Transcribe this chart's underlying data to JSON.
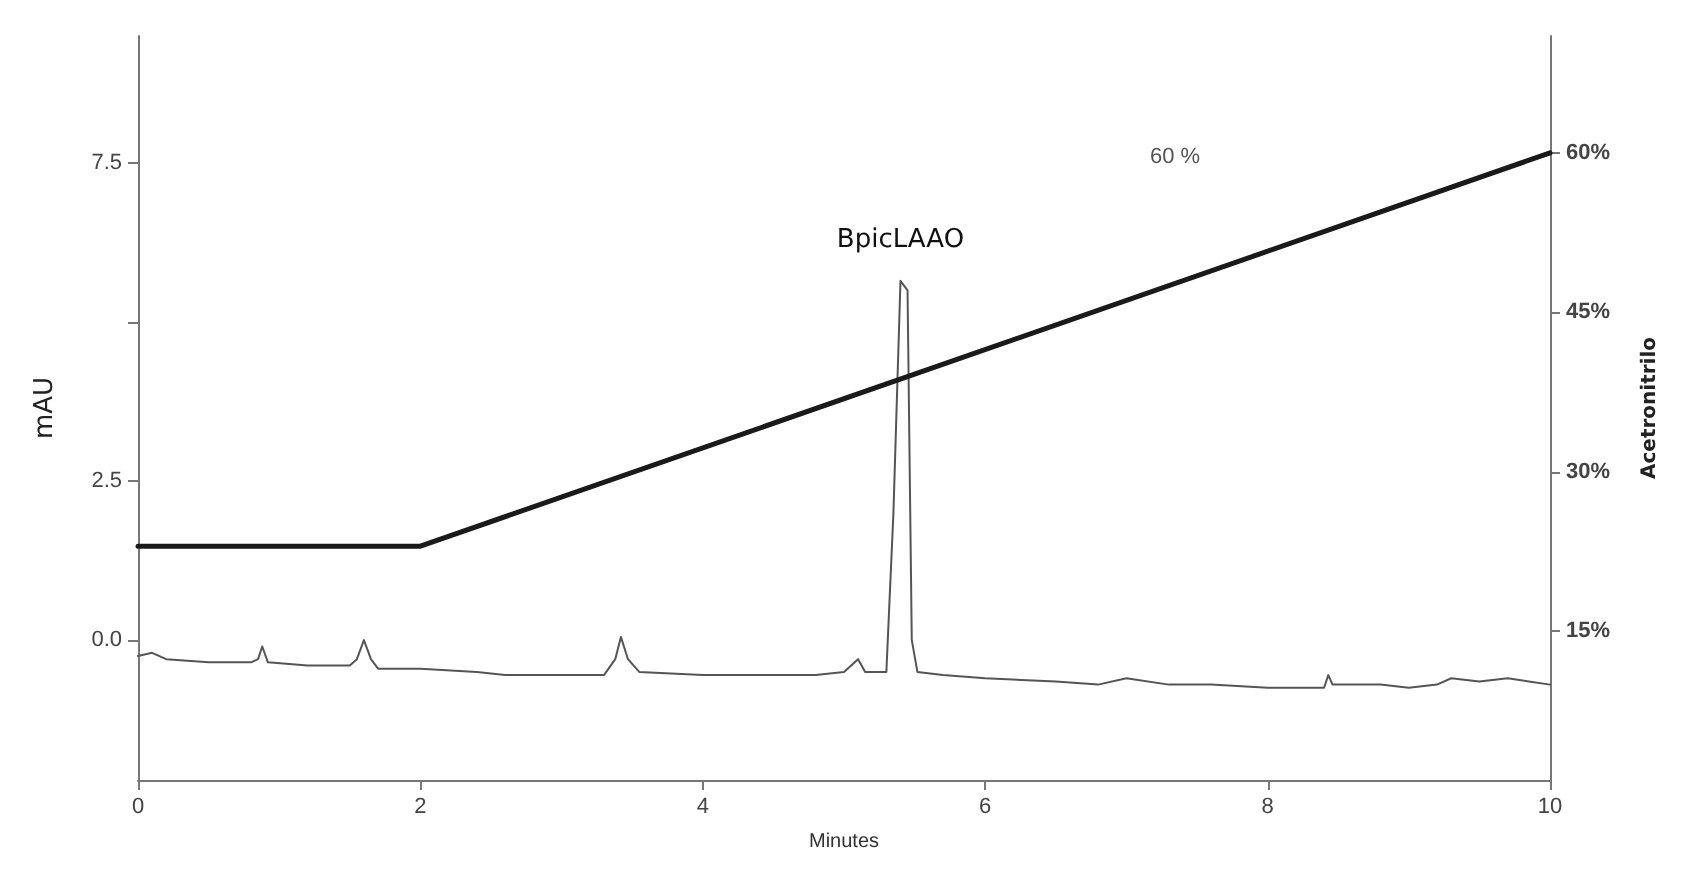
{
  "chart_data": {
    "type": "line",
    "xlabel": "Minutes",
    "ylabel": "mAU",
    "y2label": "Acetronitrilo",
    "xlim": [
      0,
      10
    ],
    "xticks": [
      0,
      2,
      4,
      6,
      8,
      10
    ],
    "ylim": [
      -2.2,
      9.5
    ],
    "yticks": [
      {
        "value": 0,
        "label": "0.0"
      },
      2.5,
      {
        "value": 5,
        "label": null
      },
      7.5
    ],
    "y2lim": [
      1,
      71
    ],
    "y2ticks": [
      {
        "value": 15,
        "label": "15%"
      },
      {
        "value": 30,
        "label": "30%"
      },
      {
        "value": 45,
        "label": "45%"
      },
      {
        "value": 60,
        "label": "60%"
      }
    ],
    "grid": false,
    "marker": "none",
    "line_style": "solid",
    "annotations": [
      {
        "text": "BpicLAAO",
        "x": 5.4,
        "y": 5.65
      },
      "60 %"
    ],
    "series": [
      {
        "color": "#555555",
        "x": [
          0.0,
          0.1,
          0.2,
          0.5,
          0.8,
          0.85,
          0.88,
          0.92,
          1.2,
          1.5,
          1.55,
          1.6,
          1.65,
          1.7,
          2.0,
          2.4,
          2.6,
          3.0,
          3.3,
          3.38,
          3.42,
          3.47,
          3.55,
          4.0,
          4.5,
          4.8,
          5.0,
          5.1,
          5.15,
          5.3,
          5.35,
          5.4,
          5.45,
          5.48,
          5.52,
          5.7,
          6.0,
          6.5,
          6.8,
          7.0,
          7.3,
          7.6,
          8.0,
          8.4,
          8.43,
          8.46,
          8.8,
          9.0,
          9.2,
          9.3,
          9.5,
          9.7,
          9.85,
          10.0
        ],
        "values": [
          -0.25,
          -0.2,
          -0.3,
          -0.35,
          -0.35,
          -0.3,
          -0.1,
          -0.35,
          -0.4,
          -0.4,
          -0.3,
          0.0,
          -0.3,
          -0.45,
          -0.45,
          -0.5,
          -0.55,
          -0.55,
          -0.55,
          -0.3,
          0.05,
          -0.3,
          -0.5,
          -0.55,
          -0.55,
          -0.55,
          -0.5,
          -0.3,
          -0.5,
          -0.5,
          2.0,
          5.65,
          5.5,
          0.0,
          -0.5,
          -0.55,
          -0.6,
          -0.65,
          -0.7,
          -0.6,
          -0.7,
          -0.7,
          -0.75,
          -0.75,
          -0.55,
          -0.7,
          -0.7,
          -0.75,
          -0.7,
          -0.6,
          -0.65,
          -0.6,
          -0.65,
          -0.7
        ]
      },
      {
        "color": "#1a1a1a",
        "axis": "y2",
        "x": [
          0,
          2,
          10
        ],
        "values": [
          23,
          23,
          60
        ]
      }
    ]
  }
}
